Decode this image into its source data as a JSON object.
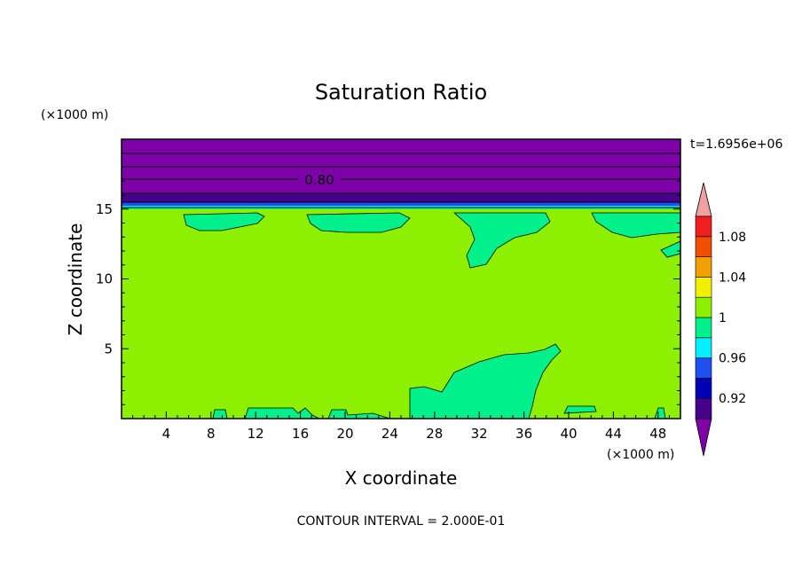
{
  "chart_data": {
    "type": "heatmap",
    "title": "Saturation Ratio",
    "xlabel": "X coordinate",
    "ylabel": "Z coordinate",
    "x_unit": "(×1000 m)",
    "y_unit": "(×1000 m)",
    "time_label": "t=1.6956e+06",
    "contour_interval_label": "CONTOUR INTERVAL = 2.000E-01",
    "contour_label": "0.80",
    "xlim": [
      0,
      50
    ],
    "ylim": [
      0,
      20
    ],
    "x_ticks": [
      "4",
      "8",
      "12",
      "16",
      "20",
      "24",
      "28",
      "32",
      "36",
      "40",
      "44",
      "48"
    ],
    "y_ticks": [
      "5",
      "10",
      "15"
    ],
    "colorbar": {
      "bins": [
        {
          "lo": null,
          "hi": 0.9,
          "color": "#7d00a8"
        },
        {
          "lo": 0.9,
          "hi": 0.92,
          "color": "#46008c"
        },
        {
          "lo": 0.92,
          "hi": 0.94,
          "color": "#0000b4"
        },
        {
          "lo": 0.94,
          "hi": 0.96,
          "color": "#1e50f0"
        },
        {
          "lo": 0.96,
          "hi": 0.98,
          "color": "#00f0ff"
        },
        {
          "lo": 0.98,
          "hi": 1.0,
          "color": "#00f08c"
        },
        {
          "lo": 1.0,
          "hi": 1.02,
          "color": "#8cf000"
        },
        {
          "lo": 1.02,
          "hi": 1.04,
          "color": "#f0f000"
        },
        {
          "lo": 1.04,
          "hi": 1.06,
          "color": "#f0a000"
        },
        {
          "lo": 1.06,
          "hi": 1.08,
          "color": "#f05000"
        },
        {
          "lo": 1.08,
          "hi": 1.1,
          "color": "#f01e1e"
        },
        {
          "lo": 1.1,
          "hi": null,
          "color": "#f0a0a0"
        }
      ],
      "tick_labels": [
        "0.92",
        "0.96",
        "1",
        "1.04",
        "1.08"
      ]
    },
    "fields": {
      "upper_layer": {
        "value": 0.8,
        "z_range": [
          16.5,
          20
        ],
        "color": "#7d00a8"
      },
      "transition_layer": {
        "z_range": [
          15.0,
          16.5
        ]
      },
      "background": {
        "value": 1.01,
        "color": "#8cf000"
      },
      "near_saturation_patches": {
        "value": 0.99,
        "color": "#00f08c"
      }
    }
  }
}
